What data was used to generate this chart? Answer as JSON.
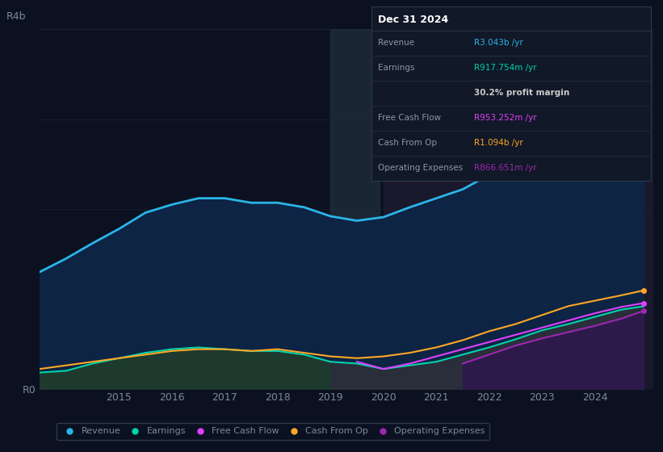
{
  "background_color": "#0b1120",
  "plot_bg_color": "#0b1120",
  "years": [
    2013.5,
    2014.0,
    2014.5,
    2015.0,
    2015.5,
    2016.0,
    2016.5,
    2017.0,
    2017.5,
    2018.0,
    2018.5,
    2019.0,
    2019.5,
    2020.0,
    2020.5,
    2021.0,
    2021.5,
    2022.0,
    2022.5,
    2023.0,
    2023.5,
    2024.0,
    2024.5,
    2024.92
  ],
  "revenue": [
    1.3,
    1.45,
    1.62,
    1.78,
    1.96,
    2.05,
    2.12,
    2.12,
    2.07,
    2.07,
    2.02,
    1.92,
    1.87,
    1.91,
    2.02,
    2.12,
    2.22,
    2.38,
    2.48,
    2.62,
    2.78,
    2.92,
    3.02,
    3.043
  ],
  "earnings": [
    0.18,
    0.2,
    0.28,
    0.34,
    0.4,
    0.44,
    0.46,
    0.44,
    0.42,
    0.42,
    0.38,
    0.3,
    0.28,
    0.22,
    0.26,
    0.3,
    0.38,
    0.46,
    0.55,
    0.65,
    0.72,
    0.8,
    0.88,
    0.917
  ],
  "free_cash_flow": [
    null,
    null,
    null,
    null,
    null,
    null,
    null,
    null,
    null,
    null,
    null,
    null,
    0.3,
    0.22,
    0.28,
    0.36,
    0.44,
    0.52,
    0.6,
    0.68,
    0.76,
    0.84,
    0.91,
    0.953
  ],
  "cash_from_op": [
    0.22,
    0.26,
    0.3,
    0.34,
    0.38,
    0.42,
    0.44,
    0.44,
    0.42,
    0.44,
    0.4,
    0.36,
    0.34,
    0.36,
    0.4,
    0.46,
    0.54,
    0.64,
    0.72,
    0.82,
    0.92,
    0.98,
    1.04,
    1.094
  ],
  "operating_expenses": [
    null,
    null,
    null,
    null,
    null,
    null,
    null,
    null,
    null,
    null,
    null,
    null,
    null,
    null,
    null,
    null,
    0.28,
    0.38,
    0.48,
    0.56,
    0.63,
    0.7,
    0.78,
    0.866
  ],
  "revenue_color": "#2ab5e8",
  "earnings_color": "#00d4aa",
  "free_cash_flow_color": "#e040fb",
  "cash_from_op_color": "#ffa726",
  "operating_expenses_color": "#9c27b0",
  "ylim": [
    0,
    4.0
  ],
  "xlim": [
    2013.5,
    2025.1
  ],
  "ytick_positions": [
    0,
    4.0
  ],
  "ytick_labels": [
    "R0",
    "R4b"
  ],
  "ytick_mid_label_pos": 3.85,
  "ytick_mid_label": "R4b",
  "xticks": [
    2015,
    2016,
    2017,
    2018,
    2019,
    2020,
    2021,
    2022,
    2023,
    2024
  ],
  "grid_color": "#1a2535",
  "text_color": "#7a8a9a",
  "shaded_2019_xmin": 2019.0,
  "shaded_2019_xmax": 2019.92,
  "shaded_2020_xmin": 2020.0,
  "shaded_2020_xmax": 2025.1,
  "info_box": {
    "title": "Dec 31 2024",
    "rows": [
      {
        "label": "Revenue",
        "value": "R3.043b /yr",
        "value_color": "#2ab5e8"
      },
      {
        "label": "Earnings",
        "value": "R917.754m /yr",
        "value_color": "#00d4aa"
      },
      {
        "label": "",
        "value": "30.2% profit margin",
        "value_color": "#cccccc",
        "bold": true
      },
      {
        "label": "Free Cash Flow",
        "value": "R953.252m /yr",
        "value_color": "#e040fb"
      },
      {
        "label": "Cash From Op",
        "value": "R1.094b /yr",
        "value_color": "#ffa726"
      },
      {
        "label": "Operating Expenses",
        "value": "R866.651m /yr",
        "value_color": "#9c27b0"
      }
    ],
    "bg_color": "#111827",
    "border_color": "#2a3a4a",
    "title_color": "#ffffff",
    "label_color": "#8899aa"
  },
  "legend": [
    {
      "label": "Revenue",
      "color": "#2ab5e8"
    },
    {
      "label": "Earnings",
      "color": "#00d4aa"
    },
    {
      "label": "Free Cash Flow",
      "color": "#e040fb"
    },
    {
      "label": "Cash From Op",
      "color": "#ffa726"
    },
    {
      "label": "Operating Expenses",
      "color": "#9c27b0"
    }
  ]
}
